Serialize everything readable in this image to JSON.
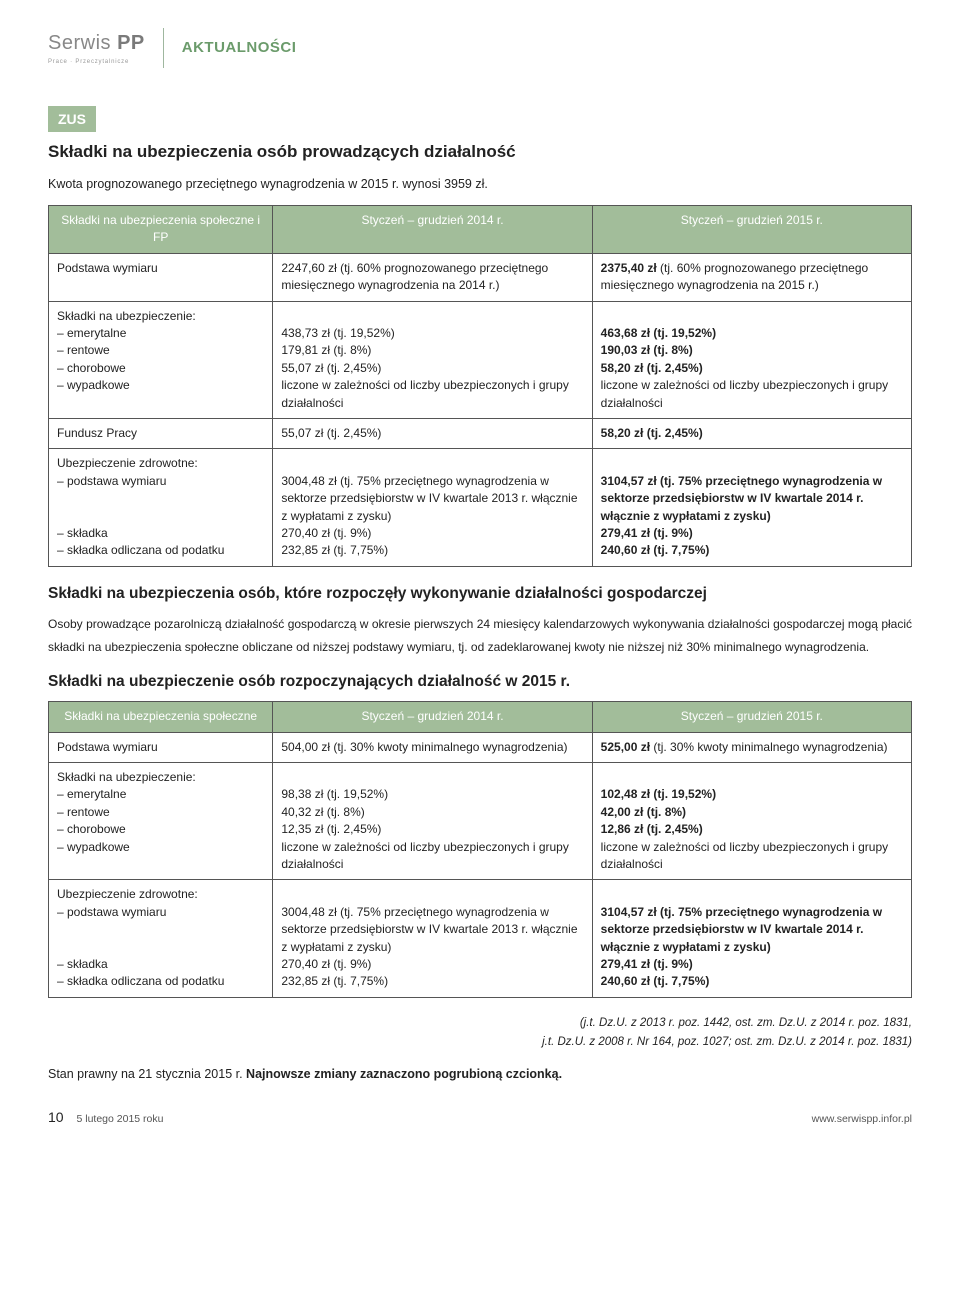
{
  "masthead": {
    "brand_a": "Serwis",
    "brand_b": "PP",
    "brand_sub": "Prace · Przeczytalnicze",
    "section": "AKTUALNOŚCI"
  },
  "badge": "ZUS",
  "h1": "Składki na ubezpieczenia osób prowadzących działalność",
  "intro": "Kwota prognozowanego przeciętnego wynagrodzenia w 2015 r. wynosi 3959 zł.",
  "t1": {
    "head_a": "Składki na ubezpieczenia społeczne i FP",
    "head_b": "Styczeń – grudzień 2014 r.",
    "head_c": "Styczeń – grudzień 2015 r.",
    "rows": [
      {
        "a": "Podstawa wymiaru",
        "b": "2247,60 zł (tj. 60% prognozowanego przeciętnego miesięcznego wynagrodzenia na 2014 r.)",
        "c": "2375,40 zł (tj. 60% prognozowanego przeciętnego miesięcznego wynagrodzenia na 2015 r.)",
        "c_bold": false,
        "c_head_bold": true
      },
      {
        "a": "Składki na ubezpieczenie:\n– emerytalne\n– rentowe\n– chorobowe\n– wypadkowe",
        "b": "\n438,73 zł (tj. 19,52%)\n179,81 zł (tj. 8%)\n55,07 zł (tj. 2,45%)\nliczone w zależności od liczby ubezpieczonych i grupy działalności",
        "c": "\n463,68 zł (tj. 19,52%)\n190,03 zł (tj. 8%)\n58,20 zł (tj. 2,45%)\nliczone w zależności od liczby ubezpieczonych i grupy działalności",
        "c_lines_bold": [
          1,
          2,
          3
        ]
      },
      {
        "a": "Fundusz Pracy",
        "b": "55,07 zł (tj. 2,45%)",
        "c": "58,20 zł (tj. 2,45%)",
        "c_bold": true
      },
      {
        "a": "Ubezpieczenie zdrowotne:\n– podstawa wymiaru\n\n\n– składka\n– składka odliczana od podatku",
        "b": "\n3004,48 zł (tj. 75% przeciętnego wynagrodzenia w sektorze przedsiębiorstw w IV kwartale 2013 r. włącznie z wypłatami z zysku)\n270,40 zł (tj. 9%)\n232,85 zł (tj. 7,75%)",
        "c": "\n3104,57 zł (tj. 75% przeciętnego wynagrodzenia w sektorze przedsiębiorstw w IV kwartale 2014 r. włącznie z wypłatami z zysku)\n279,41 zł (tj. 9%)\n240,60 zł (tj. 7,75%)",
        "c_lines_bold": [
          1,
          2,
          3
        ]
      }
    ]
  },
  "h2a": "Składki na ubezpieczenia osób, które rozpoczęły wykonywanie działalności gospodarczej",
  "p_body": "Osoby prowadzące pozarolniczą działalność gospodarczą w okresie pierwszych 24 miesięcy kalendarzowych wykonywania działalności gospodarczej mogą płacić składki na ubezpieczenia społeczne obliczane od niższej podstawy wymiaru, tj. od zadeklarowanej kwoty nie niższej niż 30% minimalnego wynagrodzenia.",
  "h2b": "Składki na ubezpieczenie osób rozpoczynających działalność w 2015 r.",
  "t2": {
    "head_a": "Składki na ubezpieczenia społeczne",
    "head_b": "Styczeń – grudzień 2014 r.",
    "head_c": "Styczeń – grudzień 2015 r.",
    "rows": [
      {
        "a": "Podstawa wymiaru",
        "b": "504,00 zł (tj. 30% kwoty minimalnego wynagrodzenia)",
        "c": "525,00 zł (tj. 30% kwoty minimalnego wynagrodzenia)",
        "c_head_bold": true
      },
      {
        "a": "Składki na ubezpieczenie:\n– emerytalne\n– rentowe\n– chorobowe\n– wypadkowe",
        "b": "\n98,38 zł (tj. 19,52%)\n40,32 zł (tj. 8%)\n12,35 zł (tj. 2,45%)\nliczone w zależności od liczby ubezpieczonych i grupy działalności",
        "c": "\n102,48 zł (tj. 19,52%)\n42,00 zł (tj. 8%)\n12,86 zł (tj. 2,45%)\nliczone w zależności od liczby ubezpieczonych i grupy działalności",
        "c_lines_bold": [
          1,
          2,
          3
        ]
      },
      {
        "a": "Ubezpieczenie zdrowotne:\n– podstawa wymiaru\n\n\n– składka\n– składka odliczana od podatku",
        "b": "\n3004,48 zł (tj. 75% przeciętnego wynagrodzenia w sektorze przedsiębiorstw w IV kwartale 2013 r. włącznie z wypłatami z zysku)\n270,40 zł (tj. 9%)\n232,85 zł (tj. 7,75%)",
        "c": "\n3104,57 zł (tj. 75% przeciętnego wynagrodzenia w sektorze przedsiębiorstw w IV kwartale 2014 r. włącznie z wypłatami z zysku)\n279,41 zł (tj. 9%)\n240,60 zł (tj. 7,75%)",
        "c_lines_bold": [
          1,
          2,
          3
        ]
      }
    ]
  },
  "legal1": "(j.t. Dz.U. z 2013 r. poz. 1442, ost. zm. Dz.U. z 2014 r. poz. 1831,",
  "legal2": "j.t. Dz.U. z 2008 r. Nr 164, poz. 1027; ost. zm. Dz.U. z 2014 r. poz. 1831)",
  "status_a": "Stan prawny na 21 stycznia 2015 r.",
  "status_b": " Najnowsze zmiany zaznaczono pogrubioną czcionką.",
  "footer": {
    "page": "10",
    "date": "5 lutego 2015 roku",
    "url": "www.serwispp.infor.pl"
  }
}
